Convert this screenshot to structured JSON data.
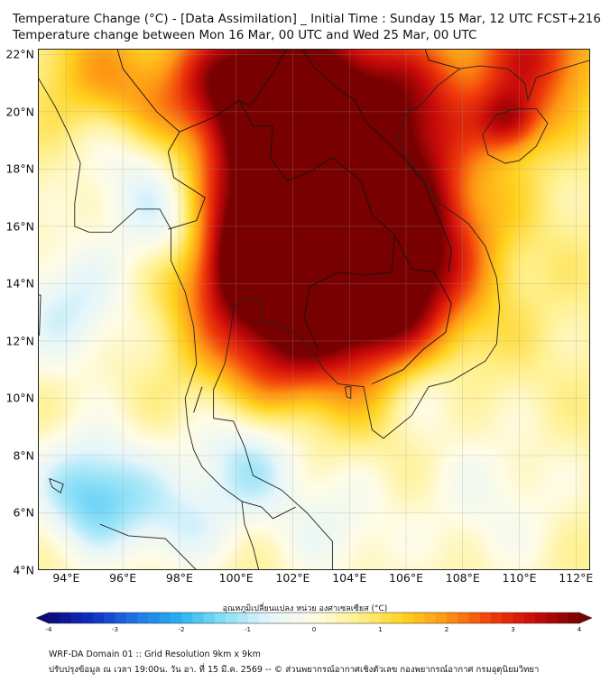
{
  "title": {
    "line1": "Temperature Change (°C) - [Data Assimilation] _ Initial Time : Sunday 15 Mar, 12 UTC FCST+216",
    "line2": "Temperature change between Mon 16 Mar, 00 UTC and Wed 25 Mar, 00 UTC"
  },
  "axes": {
    "lat_labels": [
      "22°N",
      "20°N",
      "18°N",
      "16°N",
      "14°N",
      "12°N",
      "10°N",
      "8°N",
      "6°N",
      "4°N"
    ],
    "lon_labels": [
      "94°E",
      "96°E",
      "98°E",
      "100°E",
      "102°E",
      "104°E",
      "106°E",
      "108°E",
      "110°E",
      "112°E"
    ],
    "lat_range": [
      4,
      22.2
    ],
    "lon_range": [
      93,
      112.5
    ]
  },
  "colorbar": {
    "title": "อุณหภูมิเปลี่ยนแปลง หน่วย องศาเซลเซียส (°C)",
    "range": [
      -4,
      4
    ],
    "ticks": [
      "-4",
      "-3",
      "-2",
      "-1",
      "0",
      "1",
      "2",
      "3",
      "4"
    ],
    "colors": [
      "#0a0a7a",
      "#1030c8",
      "#1e78e6",
      "#28b4f0",
      "#8ce0f8",
      "#e6f6fa",
      "#fffce6",
      "#fff08c",
      "#ffd21e",
      "#ff9614",
      "#f03c0a",
      "#c80a0a",
      "#780000"
    ]
  },
  "field_anomalies": [
    {
      "lon": 103.2,
      "lat": 15.2,
      "value": 2.9,
      "radius_deg": 3.0
    },
    {
      "lon": 101.8,
      "lat": 18.3,
      "value": 2.7,
      "radius_deg": 2.6
    },
    {
      "lon": 104.8,
      "lat": 13.4,
      "value": 2.6,
      "radius_deg": 2.0
    },
    {
      "lon": 100.3,
      "lat": 14.7,
      "value": 2.5,
      "radius_deg": 1.6
    },
    {
      "lon": 106.0,
      "lat": 16.2,
      "value": 2.0,
      "radius_deg": 2.0
    },
    {
      "lon": 103.0,
      "lat": 21.0,
      "value": 2.6,
      "radius_deg": 2.4
    },
    {
      "lon": 99.8,
      "lat": 21.2,
      "value": 2.0,
      "radius_deg": 1.5
    },
    {
      "lon": 110.5,
      "lat": 22.0,
      "value": 2.6,
      "radius_deg": 1.6
    },
    {
      "lon": 109.6,
      "lat": 19.7,
      "value": 2.2,
      "radius_deg": 0.8
    },
    {
      "lon": 106.5,
      "lat": 20.3,
      "value": 1.5,
      "radius_deg": 1.6
    },
    {
      "lon": 101.2,
      "lat": 11.5,
      "value": 1.6,
      "radius_deg": 1.5
    },
    {
      "lon": 96.6,
      "lat": 18.2,
      "value": -1.1,
      "radius_deg": 1.6
    },
    {
      "lon": 97.8,
      "lat": 16.0,
      "value": -1.4,
      "radius_deg": 1.3
    },
    {
      "lon": 94.1,
      "lat": 13.2,
      "value": -1.2,
      "radius_deg": 1.6
    },
    {
      "lon": 95.0,
      "lat": 6.7,
      "value": -2.0,
      "radius_deg": 1.5
    },
    {
      "lon": 100.3,
      "lat": 7.8,
      "value": -1.4,
      "radius_deg": 1.5
    },
    {
      "lon": 106.7,
      "lat": 10.5,
      "value": -0.8,
      "radius_deg": 1.2
    },
    {
      "lon": 103.5,
      "lat": 5.5,
      "value": -0.7,
      "radius_deg": 1.5
    },
    {
      "lon": 109.0,
      "lat": 6.5,
      "value": -0.6,
      "radius_deg": 2.0
    },
    {
      "lon": 98.0,
      "lat": 5.5,
      "value": -0.8,
      "radius_deg": 1.2
    },
    {
      "lon": 96.8,
      "lat": 20.2,
      "value": 1.0,
      "radius_deg": 1.2
    },
    {
      "lon": 95.0,
      "lat": 21.5,
      "value": 1.2,
      "radius_deg": 1.5
    }
  ],
  "field_background": 0.55,
  "coastline_note": "",
  "coastlines": [
    {
      "name": "mainland-coast",
      "points": [
        [
          93,
          21.2
        ],
        [
          93.6,
          20.2
        ],
        [
          94.1,
          19.2
        ],
        [
          94.5,
          18.2
        ],
        [
          94.3,
          16.8
        ],
        [
          94.3,
          16.0
        ],
        [
          94.8,
          15.8
        ],
        [
          95.6,
          15.8
        ],
        [
          96.5,
          16.6
        ],
        [
          97.3,
          16.6
        ],
        [
          97.7,
          15.9
        ],
        [
          97.7,
          14.8
        ],
        [
          98.2,
          13.7
        ],
        [
          98.5,
          12.5
        ],
        [
          98.6,
          11.2
        ],
        [
          98.2,
          10.0
        ],
        [
          98.3,
          9.0
        ],
        [
          98.5,
          8.2
        ],
        [
          98.8,
          7.6
        ],
        [
          99.5,
          6.9
        ],
        [
          100.2,
          6.4
        ],
        [
          100.3,
          5.6
        ],
        [
          100.6,
          4.8
        ],
        [
          100.8,
          4.0
        ]
      ]
    },
    {
      "name": "gulf-coast",
      "points": [
        [
          103.4,
          4.0
        ],
        [
          103.4,
          5.0
        ],
        [
          102.5,
          6.0
        ],
        [
          101.6,
          6.8
        ],
        [
          100.6,
          7.3
        ],
        [
          100.3,
          8.3
        ],
        [
          99.9,
          9.2
        ],
        [
          99.2,
          9.3
        ],
        [
          99.2,
          10.3
        ],
        [
          99.6,
          11.2
        ],
        [
          99.8,
          12.3
        ],
        [
          99.9,
          13.2
        ],
        [
          100.3,
          13.5
        ],
        [
          100.9,
          13.4
        ],
        [
          100.9,
          12.7
        ],
        [
          101.4,
          12.6
        ],
        [
          102.2,
          12.2
        ],
        [
          102.7,
          11.6
        ],
        [
          103.1,
          11.0
        ],
        [
          103.6,
          10.5
        ],
        [
          104.5,
          10.4
        ],
        [
          104.8,
          8.9
        ],
        [
          105.2,
          8.6
        ],
        [
          106.2,
          9.4
        ],
        [
          106.8,
          10.4
        ],
        [
          107.6,
          10.6
        ],
        [
          108.8,
          11.3
        ],
        [
          109.2,
          11.9
        ],
        [
          109.3,
          13.2
        ],
        [
          109.2,
          14.2
        ],
        [
          108.8,
          15.3
        ],
        [
          108.2,
          16.1
        ],
        [
          107.2,
          16.8
        ],
        [
          106.6,
          17.6
        ],
        [
          106.0,
          18.4
        ],
        [
          105.7,
          19.1
        ],
        [
          106.0,
          19.9
        ],
        [
          106.6,
          20.3
        ],
        [
          107.1,
          20.9
        ],
        [
          107.9,
          21.5
        ],
        [
          108.6,
          21.6
        ],
        [
          109.6,
          21.5
        ],
        [
          110.2,
          21.0
        ],
        [
          110.3,
          20.4
        ],
        [
          110.6,
          21.2
        ],
        [
          111.5,
          21.5
        ],
        [
          112.5,
          21.8
        ]
      ]
    },
    {
      "name": "hainan",
      "points": [
        [
          108.7,
          19.2
        ],
        [
          109.2,
          19.9
        ],
        [
          109.9,
          20.1
        ],
        [
          110.6,
          20.1
        ],
        [
          111.0,
          19.6
        ],
        [
          110.6,
          18.8
        ],
        [
          110.0,
          18.3
        ],
        [
          109.5,
          18.2
        ],
        [
          108.9,
          18.5
        ],
        [
          108.7,
          19.2
        ]
      ]
    },
    {
      "name": "phu-quoc",
      "points": [
        [
          103.85,
          10.4
        ],
        [
          104.05,
          10.4
        ],
        [
          104.05,
          10.0
        ],
        [
          103.9,
          10.05
        ],
        [
          103.85,
          10.4
        ]
      ]
    },
    {
      "name": "andaman-1",
      "points": [
        [
          92.9,
          13.6
        ],
        [
          93.1,
          13.6
        ],
        [
          93.05,
          12.2
        ],
        [
          92.9,
          12.3
        ],
        [
          92.9,
          13.6
        ]
      ]
    },
    {
      "name": "nicobar",
      "points": [
        [
          93.4,
          7.2
        ],
        [
          93.9,
          7.0
        ],
        [
          93.8,
          6.7
        ],
        [
          93.5,
          6.9
        ],
        [
          93.4,
          7.2
        ]
      ]
    },
    {
      "name": "sumatra-tip",
      "points": [
        [
          95.2,
          5.6
        ],
        [
          96.2,
          5.2
        ],
        [
          97.5,
          5.1
        ],
        [
          98.2,
          4.4
        ],
        [
          98.6,
          4.0
        ]
      ]
    }
  ],
  "borders": [
    {
      "points": [
        [
          97.6,
          15.9
        ],
        [
          98.6,
          16.2
        ],
        [
          98.9,
          17.0
        ],
        [
          97.8,
          17.7
        ],
        [
          97.6,
          18.6
        ],
        [
          98.0,
          19.3
        ],
        [
          99.2,
          19.8
        ],
        [
          100.1,
          20.4
        ],
        [
          100.5,
          20.2
        ],
        [
          101.2,
          21.2
        ],
        [
          101.8,
          22.2
        ]
      ]
    },
    {
      "points": [
        [
          100.1,
          20.4
        ],
        [
          100.6,
          19.5
        ],
        [
          101.3,
          19.5
        ],
        [
          101.2,
          18.4
        ],
        [
          101.8,
          17.6
        ],
        [
          102.6,
          17.9
        ],
        [
          103.4,
          18.4
        ],
        [
          104.4,
          17.6
        ],
        [
          104.8,
          16.4
        ],
        [
          105.6,
          15.7
        ],
        [
          105.5,
          14.4
        ],
        [
          104.6,
          14.3
        ],
        [
          103.6,
          14.4
        ],
        [
          102.6,
          13.9
        ],
        [
          102.4,
          12.8
        ],
        [
          102.9,
          11.7
        ]
      ]
    },
    {
      "points": [
        [
          105.6,
          15.7
        ],
        [
          106.2,
          14.5
        ],
        [
          107.0,
          14.4
        ],
        [
          107.6,
          13.3
        ],
        [
          107.4,
          12.3
        ],
        [
          106.6,
          11.7
        ],
        [
          105.9,
          11.0
        ],
        [
          104.8,
          10.5
        ]
      ]
    },
    {
      "points": [
        [
          101.8,
          22.2
        ],
        [
          102.4,
          22.5
        ],
        [
          103.5,
          22.6
        ],
        [
          104.3,
          22.7
        ],
        [
          105.3,
          23.2
        ],
        [
          106.6,
          22.4
        ],
        [
          106.8,
          21.8
        ],
        [
          107.9,
          21.5
        ]
      ]
    },
    {
      "points": [
        [
          102.2,
          22.4
        ],
        [
          102.7,
          21.6
        ],
        [
          103.6,
          20.8
        ],
        [
          104.2,
          20.4
        ],
        [
          104.6,
          19.6
        ],
        [
          105.3,
          19.0
        ],
        [
          105.8,
          18.5
        ],
        [
          106.6,
          17.6
        ],
        [
          107.1,
          16.4
        ],
        [
          107.4,
          15.7
        ],
        [
          107.6,
          15.2
        ],
        [
          107.5,
          14.4
        ]
      ]
    },
    {
      "points": [
        [
          98.8,
          10.4
        ],
        [
          98.5,
          9.5
        ]
      ]
    },
    {
      "points": [
        [
          100.2,
          6.4
        ],
        [
          100.9,
          6.2
        ],
        [
          101.3,
          5.8
        ],
        [
          102.1,
          6.2
        ]
      ]
    },
    {
      "points": [
        [
          98.0,
          19.3
        ],
        [
          97.2,
          20.0
        ],
        [
          96.0,
          21.5
        ],
        [
          95.8,
          22.2
        ]
      ]
    }
  ],
  "footer": {
    "line1": "WRF-DA Domain 01 :: Grid Resolution 9km x 9km",
    "line2": "ปรับปรุงข้อมูล ณ เวลา 19:00น. วัน อา. ที่ 15 มี.ค. 2569 -- © ส่วนพยากรณ์อากาศเชิงตัวเลข กองพยากรณ์อากาศ กรมอุตุนิยมวิทยา"
  }
}
